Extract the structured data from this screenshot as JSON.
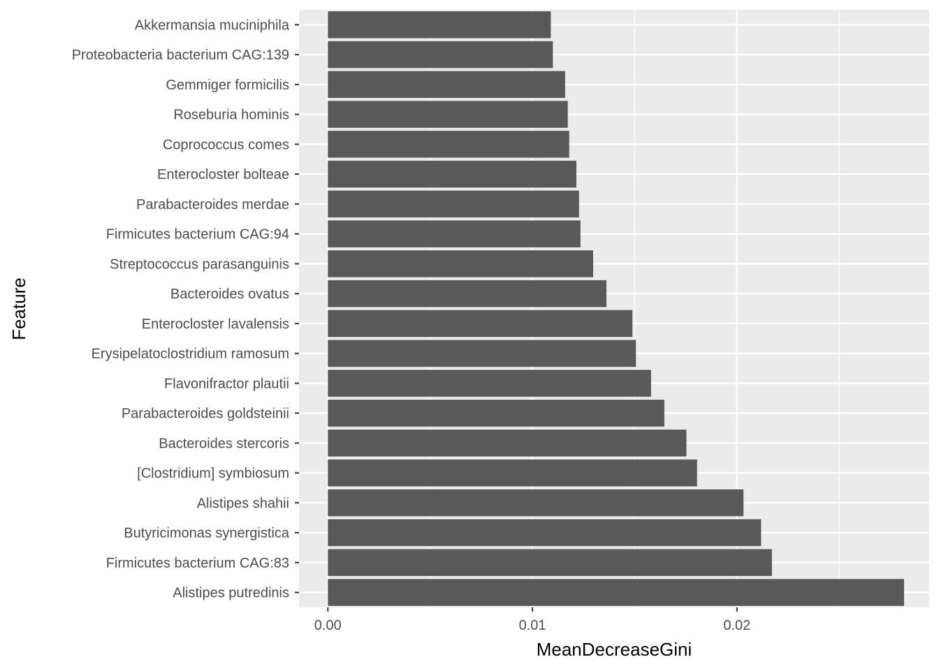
{
  "chart_data": {
    "type": "bar",
    "orientation": "horizontal",
    "xlabel": "MeanDecreaseGini",
    "ylabel": "Feature",
    "xlim": [
      -0.00141,
      0.0294
    ],
    "x_ticks": [
      0.0,
      0.01,
      0.02
    ],
    "x_tick_labels": [
      "0.00",
      "0.01",
      "0.02"
    ],
    "grid": true,
    "legend": "none",
    "categories": [
      "Akkermansia muciniphila",
      "Proteobacteria bacterium CAG:139",
      "Gemmiger formicilis",
      "Roseburia hominis",
      "Coprococcus comes",
      "Enterocloster bolteae",
      "Parabacteroides merdae",
      "Firmicutes bacterium CAG:94",
      "Streptococcus parasanguinis",
      "Bacteroides ovatus",
      "Enterocloster lavalensis",
      "Erysipelatoclostridium ramosum",
      "Flavonifractor plautii",
      "Parabacteroides goldsteinii",
      "Bacteroides stercoris",
      "[Clostridium] symbiosum",
      "Alistipes shahii",
      "Butyricimonas synergistica",
      "Firmicutes bacterium CAG:83",
      "Alistipes putredinis"
    ],
    "values": [
      0.0109,
      0.011,
      0.0116,
      0.01173,
      0.0118,
      0.01215,
      0.01228,
      0.01235,
      0.01297,
      0.01362,
      0.01489,
      0.01506,
      0.0158,
      0.01645,
      0.01753,
      0.01805,
      0.02032,
      0.02118,
      0.02171,
      0.02817
    ]
  },
  "colors": {
    "panel_background": "#ebebeb",
    "grid_major": "#ffffff",
    "bar_fill": "#595959",
    "tick_text": "#4d4d4d",
    "tick_mark": "#333333",
    "axis_title": "#000000"
  }
}
